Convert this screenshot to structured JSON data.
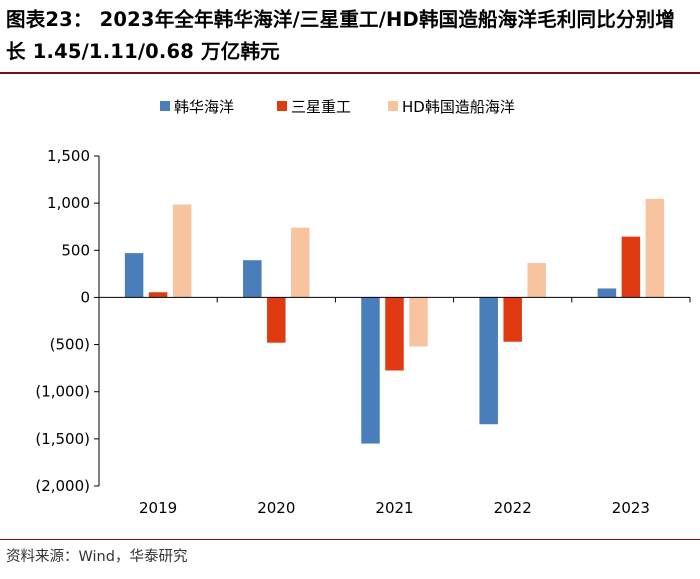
{
  "title": "图表23： 2023年全年韩华海洋/三星重工/HD韩国造船海洋毛利同比分别增长 1.45/1.11/0.68 万亿韩元",
  "source": "资料来源：Wind，华泰研究",
  "chart_data": {
    "type": "bar",
    "categories": [
      "2019",
      "2020",
      "2021",
      "2022",
      "2023"
    ],
    "series": [
      {
        "name": "韩华海洋",
        "color": "#4a7ebb",
        "values": [
          470,
          395,
          -1550,
          -1345,
          95
        ]
      },
      {
        "name": "三星重工",
        "color": "#e03a12",
        "values": [
          55,
          -480,
          -775,
          -470,
          645
        ]
      },
      {
        "name": "HD韩国造船海洋",
        "color": "#f8c4a0",
        "values": [
          985,
          740,
          -520,
          365,
          1045
        ]
      }
    ],
    "ylim": [
      -2000,
      1500
    ],
    "yticks": [
      1500,
      1000,
      500,
      0,
      -500,
      -1000,
      -1500,
      -2000
    ],
    "ytick_labels": [
      "1,500",
      "1,000",
      "500",
      "0",
      "(500)",
      "(1,000)",
      "(1,500)",
      "(2,000)"
    ],
    "grid": false,
    "legend": "top"
  }
}
